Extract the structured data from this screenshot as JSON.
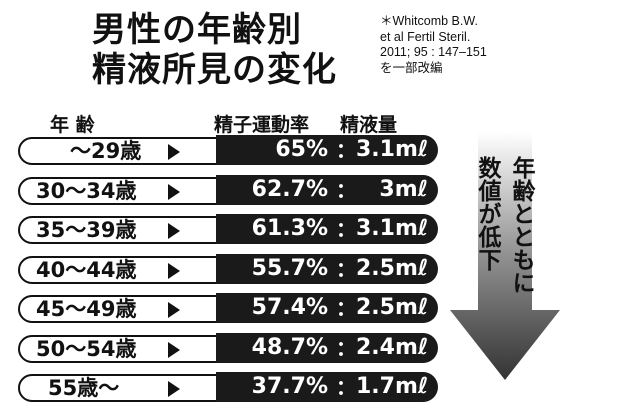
{
  "title": {
    "line1": "男性の年齢別",
    "line2": "精液所見の変化"
  },
  "source": {
    "line1": "＊Whitcomb B.W.",
    "line2": "et al Fertil Steril.",
    "line3": "2011; 95 : 147–151",
    "line4": "を一部改編"
  },
  "headers": {
    "age": "年 齢",
    "motility": "精子運動率",
    "volume": "精液量"
  },
  "rows": [
    {
      "age": "〜29歳",
      "motility": "65%",
      "volume": "3.1mℓ"
    },
    {
      "age": "30〜34歳",
      "motility": "62.7%",
      "volume": "3mℓ"
    },
    {
      "age": "35〜39歳",
      "motility": "61.3%",
      "volume": "3.1mℓ"
    },
    {
      "age": "40〜44歳",
      "motility": "55.7%",
      "volume": "2.5mℓ"
    },
    {
      "age": "45〜49歳",
      "motility": "57.4%",
      "volume": "2.5mℓ"
    },
    {
      "age": "50〜54歳",
      "motility": "48.7%",
      "volume": "2.4mℓ"
    },
    {
      "age": "55歳〜",
      "motility": "37.7%",
      "volume": "1.7mℓ"
    }
  ],
  "separator": "：",
  "side_text": {
    "col1": "年齢とともに",
    "col2": "数値が低下"
  }
}
